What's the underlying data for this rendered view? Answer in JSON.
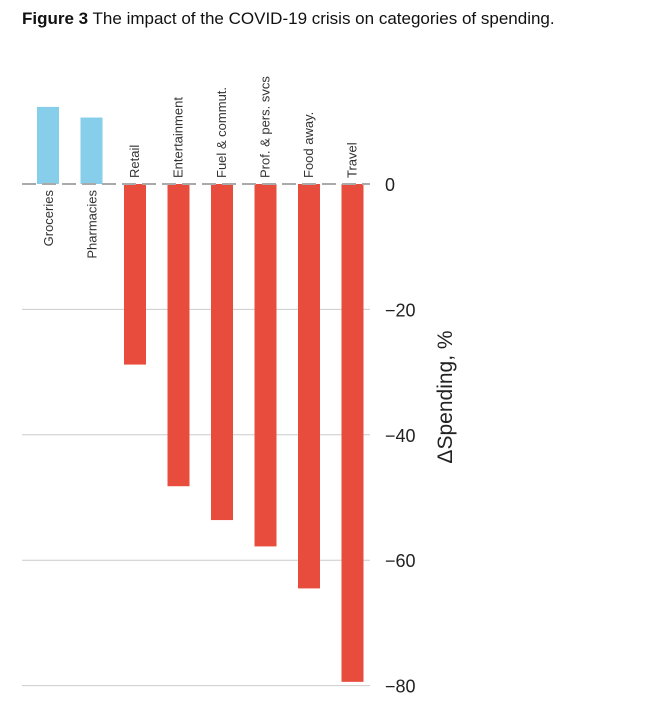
{
  "caption": {
    "label": "Figure 3",
    "text": "The impact of the COVID-19 crisis on categories of spending."
  },
  "colors": {
    "positive": "#87ceeb",
    "negative": "#e74c3c",
    "grid": "#cccccc",
    "zero_line": "#aaaaaa"
  },
  "chart_data": {
    "type": "bar",
    "title": "",
    "xlabel": "",
    "ylabel": "ΔSpending, %",
    "ylim": [
      -80,
      13
    ],
    "y_ticks": [
      0,
      -20,
      -40,
      -60,
      -80
    ],
    "y_tick_labels": [
      "0",
      "−20",
      "−40",
      "−60",
      "−80"
    ],
    "y_axis_position": "right",
    "grid": true,
    "categories": [
      "Groceries",
      "Pharmacies",
      "Retail",
      "Entertainment",
      "Fuel & commut.",
      "Prof. & pers. svcs",
      "Food away.",
      "Travel"
    ],
    "values": [
      12.3,
      10.6,
      -28.8,
      -48.2,
      -53.6,
      -57.8,
      -64.5,
      -79.4
    ]
  }
}
